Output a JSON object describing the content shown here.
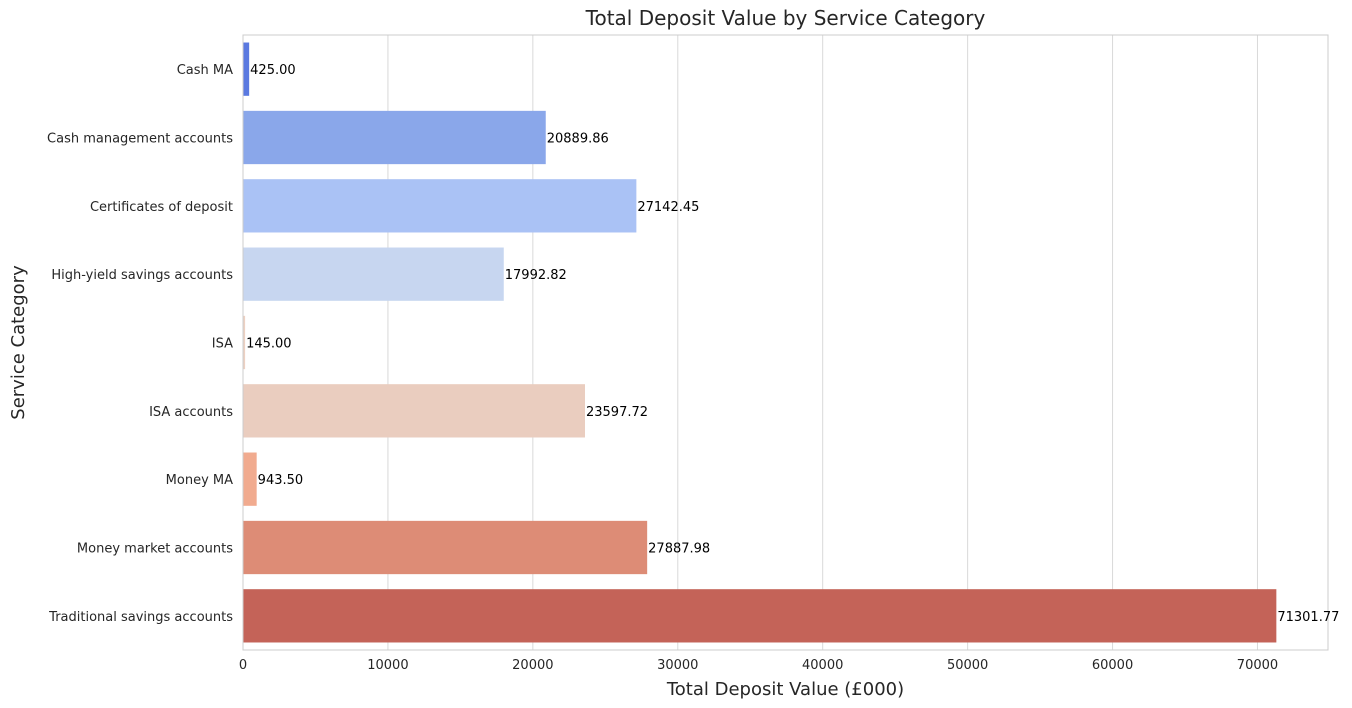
{
  "chart_data": {
    "type": "bar",
    "orientation": "horizontal",
    "title": "Total Deposit Value by Service Category",
    "xlabel": "Total Deposit Value (£000)",
    "ylabel": "Service Category",
    "xlim": [
      0,
      74866
    ],
    "xticks": [
      0,
      10000,
      20000,
      30000,
      40000,
      50000,
      60000,
      70000
    ],
    "grid": "vertical",
    "legend": "none",
    "categories": [
      "Cash MA",
      "Cash management accounts",
      "Certificates of deposit",
      "High-yield savings accounts",
      "ISA",
      "ISA accounts",
      "Money MA",
      "Money market accounts",
      "Traditional savings accounts"
    ],
    "values": [
      425.0,
      20889.86,
      27142.45,
      17992.82,
      145.0,
      23597.72,
      943.5,
      27887.98,
      71301.77
    ],
    "data_labels": [
      "425.00",
      "20889.86",
      "27142.45",
      "17992.82",
      "145.00",
      "23597.72",
      "943.50",
      "27887.98",
      "71301.77"
    ],
    "colors": [
      "#5a79e0",
      "#8aa7ea",
      "#aac2f5",
      "#c7d6f0",
      "#edd1c2",
      "#eacdbf",
      "#f1ab8f",
      "#dd8c76",
      "#c46358"
    ]
  }
}
